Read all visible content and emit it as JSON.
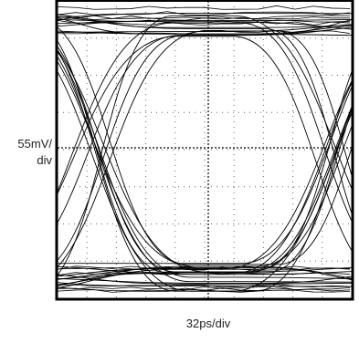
{
  "y_scale": {
    "line1": "55mV/",
    "line2": "div"
  },
  "x_scale": "32ps/div"
}
